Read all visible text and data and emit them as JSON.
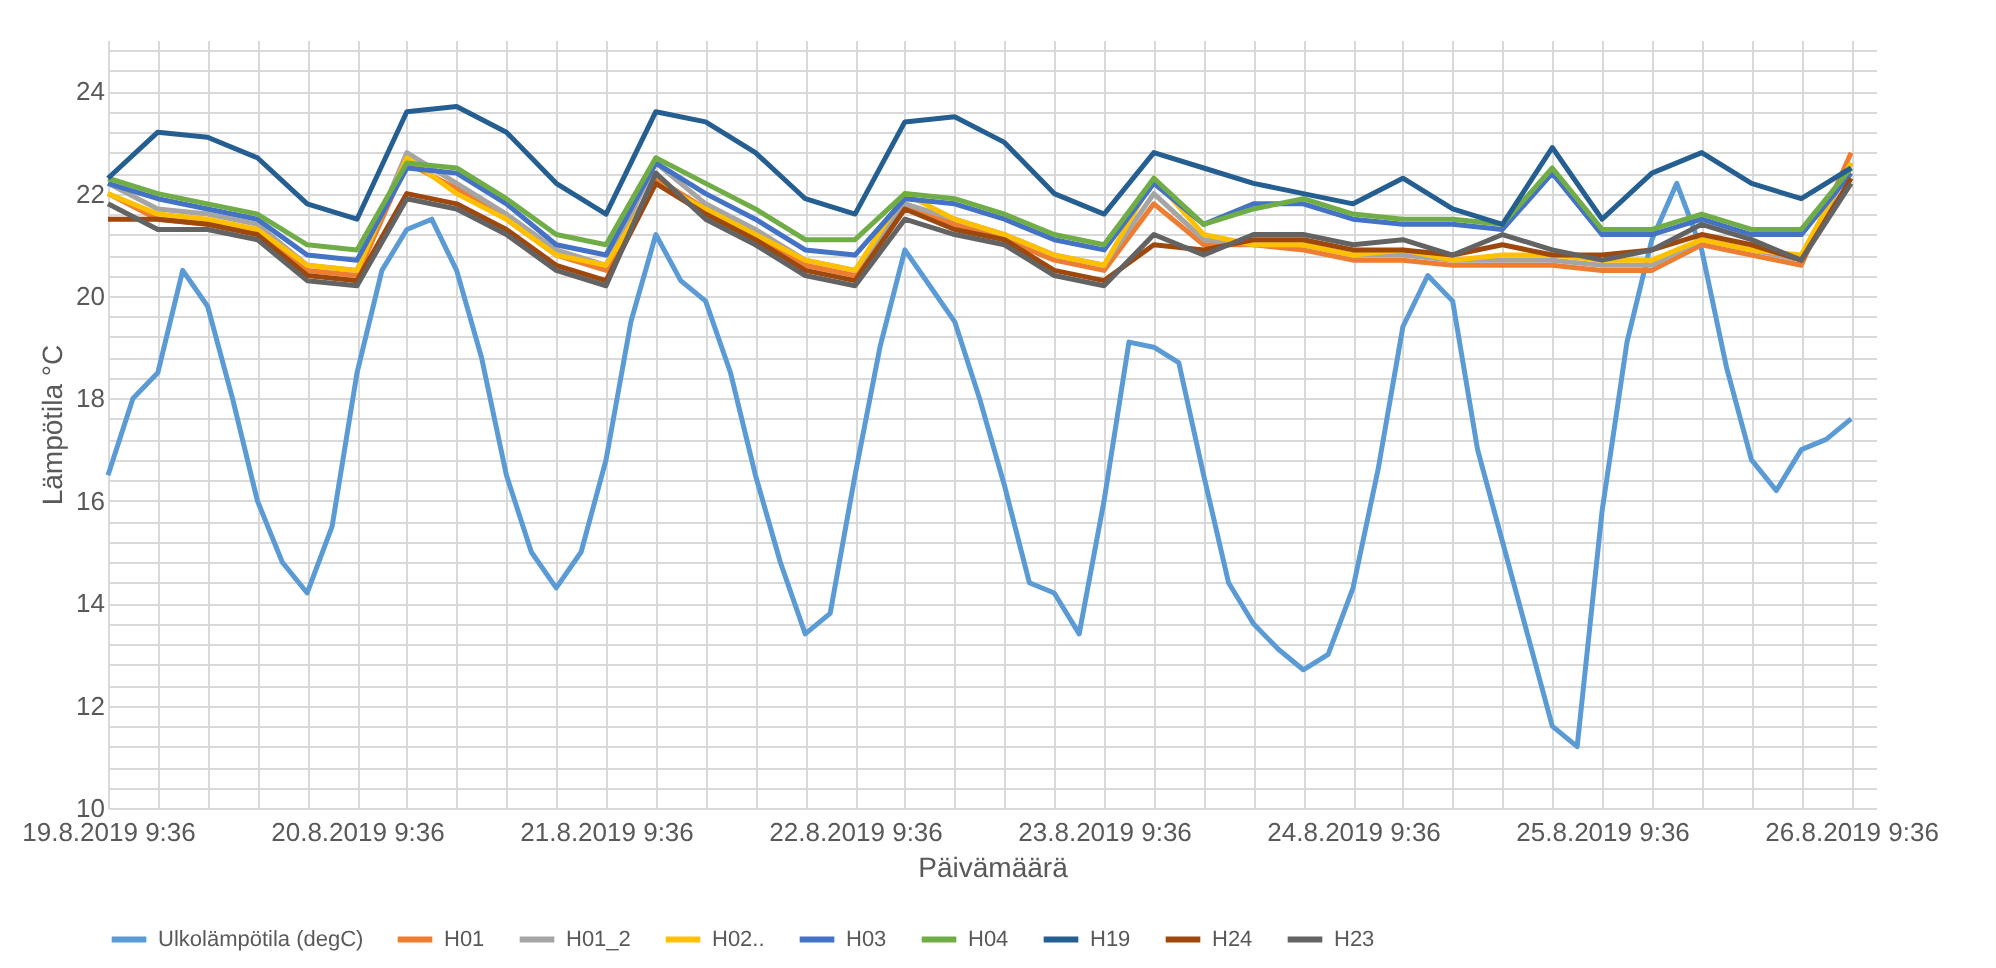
{
  "chart_data": {
    "type": "line",
    "xlabel": "Päivämäärä",
    "ylabel": "Lämpötila °C",
    "legend": "bottom",
    "grid": true,
    "line_style": "solid",
    "xlim": [
      "2019-08-19T09:36",
      "2019-08-26T12:00"
    ],
    "xticks": [
      {
        "value": "2019-08-19T09:36",
        "label": "19.8.2019 9:36"
      },
      {
        "value": "2019-08-19T14:24",
        "label": null
      },
      {
        "value": "2019-08-19T19:12",
        "label": null
      },
      {
        "value": "2019-08-20T00:00",
        "label": null
      },
      {
        "value": "2019-08-20T04:48",
        "label": null
      },
      {
        "value": "2019-08-20T09:36",
        "label": "20.8.2019 9:36"
      },
      {
        "value": "2019-08-20T14:24",
        "label": null
      },
      {
        "value": "2019-08-20T19:12",
        "label": null
      },
      {
        "value": "2019-08-21T00:00",
        "label": null
      },
      {
        "value": "2019-08-21T04:48",
        "label": null
      },
      {
        "value": "2019-08-21T09:36",
        "label": "21.8.2019 9:36"
      },
      {
        "value": "2019-08-21T14:24",
        "label": null
      },
      {
        "value": "2019-08-21T19:12",
        "label": null
      },
      {
        "value": "2019-08-22T00:00",
        "label": null
      },
      {
        "value": "2019-08-22T04:48",
        "label": null
      },
      {
        "value": "2019-08-22T09:36",
        "label": "22.8.2019 9:36"
      },
      {
        "value": "2019-08-22T14:24",
        "label": null
      },
      {
        "value": "2019-08-22T19:12",
        "label": null
      },
      {
        "value": "2019-08-23T00:00",
        "label": null
      },
      {
        "value": "2019-08-23T04:48",
        "label": null
      },
      {
        "value": "2019-08-23T09:36",
        "label": "23.8.2019 9:36"
      },
      {
        "value": "2019-08-23T14:24",
        "label": null
      },
      {
        "value": "2019-08-23T19:12",
        "label": null
      },
      {
        "value": "2019-08-24T00:00",
        "label": null
      },
      {
        "value": "2019-08-24T04:48",
        "label": null
      },
      {
        "value": "2019-08-24T09:36",
        "label": "24.8.2019 9:36"
      },
      {
        "value": "2019-08-24T14:24",
        "label": null
      },
      {
        "value": "2019-08-24T19:12",
        "label": null
      },
      {
        "value": "2019-08-25T00:00",
        "label": null
      },
      {
        "value": "2019-08-25T04:48",
        "label": null
      },
      {
        "value": "2019-08-25T09:36",
        "label": "25.8.2019 9:36"
      },
      {
        "value": "2019-08-25T14:24",
        "label": null
      },
      {
        "value": "2019-08-25T19:12",
        "label": null
      },
      {
        "value": "2019-08-26T00:00",
        "label": null
      },
      {
        "value": "2019-08-26T04:48",
        "label": null
      },
      {
        "value": "2019-08-26T09:36",
        "label": "26.8.2019 9:36"
      }
    ],
    "ylim": [
      10,
      25
    ],
    "yticks": [
      10,
      {
        "value": 10.4,
        "label": null
      },
      {
        "value": 10.8,
        "label": null
      },
      {
        "value": 11.2,
        "label": null
      },
      {
        "value": 11.6,
        "label": null
      },
      12,
      {
        "value": 12.4,
        "label": null
      },
      {
        "value": 12.8,
        "label": null
      },
      {
        "value": 13.2,
        "label": null
      },
      {
        "value": 13.6,
        "label": null
      },
      14,
      {
        "value": 14.4,
        "label": null
      },
      {
        "value": 14.8,
        "label": null
      },
      {
        "value": 15.2,
        "label": null
      },
      {
        "value": 15.6,
        "label": null
      },
      16,
      {
        "value": 16.4,
        "label": null
      },
      {
        "value": 16.8,
        "label": null
      },
      {
        "value": 17.2,
        "label": null
      },
      {
        "value": 17.6,
        "label": null
      },
      18,
      {
        "value": 18.4,
        "label": null
      },
      {
        "value": 18.8,
        "label": null
      },
      {
        "value": 19.2,
        "label": null
      },
      {
        "value": 19.6,
        "label": null
      },
      20,
      {
        "value": 20.4,
        "label": null
      },
      {
        "value": 20.8,
        "label": null
      },
      {
        "value": 21.2,
        "label": null
      },
      {
        "value": 21.6,
        "label": null
      },
      22,
      {
        "value": 22.4,
        "label": null
      },
      {
        "value": 22.8,
        "label": null
      },
      {
        "value": 23.2,
        "label": null
      },
      {
        "value": 23.6,
        "label": null
      },
      24,
      {
        "value": 24.4,
        "label": null
      },
      {
        "value": 24.8,
        "label": null
      }
    ],
    "x": [
      "2019-08-19T09:36",
      "2019-08-19T12:00",
      "2019-08-19T14:24",
      "2019-08-19T16:48",
      "2019-08-19T19:12",
      "2019-08-19T21:36",
      "2019-08-20T00:00",
      "2019-08-20T02:24",
      "2019-08-20T04:48",
      "2019-08-20T07:12",
      "2019-08-20T09:36",
      "2019-08-20T12:00",
      "2019-08-20T14:24",
      "2019-08-20T16:48",
      "2019-08-20T19:12",
      "2019-08-20T21:36",
      "2019-08-21T00:00",
      "2019-08-21T02:24",
      "2019-08-21T04:48",
      "2019-08-21T07:12",
      "2019-08-21T09:36",
      "2019-08-21T12:00",
      "2019-08-21T14:24",
      "2019-08-21T16:48",
      "2019-08-21T19:12",
      "2019-08-21T21:36",
      "2019-08-22T00:00",
      "2019-08-22T02:24",
      "2019-08-22T04:48",
      "2019-08-22T07:12",
      "2019-08-22T09:36",
      "2019-08-22T12:00",
      "2019-08-22T14:24",
      "2019-08-22T16:48",
      "2019-08-22T19:12",
      "2019-08-22T21:36",
      "2019-08-23T00:00",
      "2019-08-23T02:24",
      "2019-08-23T04:48",
      "2019-08-23T07:12",
      "2019-08-23T09:36",
      "2019-08-23T12:00",
      "2019-08-23T14:24",
      "2019-08-23T16:48",
      "2019-08-23T19:12",
      "2019-08-23T21:36",
      "2019-08-24T00:00",
      "2019-08-24T02:24",
      "2019-08-24T04:48",
      "2019-08-24T07:12",
      "2019-08-24T09:36",
      "2019-08-24T12:00",
      "2019-08-24T14:24",
      "2019-08-24T16:48",
      "2019-08-24T19:12",
      "2019-08-24T21:36",
      "2019-08-25T00:00",
      "2019-08-25T02:24",
      "2019-08-25T04:48",
      "2019-08-25T07:12",
      "2019-08-25T09:36",
      "2019-08-25T12:00",
      "2019-08-25T14:24",
      "2019-08-25T16:48",
      "2019-08-25T19:12",
      "2019-08-25T21:36",
      "2019-08-26T00:00",
      "2019-08-26T02:24",
      "2019-08-26T04:48",
      "2019-08-26T07:12",
      "2019-08-26T09:36"
    ],
    "series": [
      {
        "name": "Ulkolämpötila (degC)",
        "color": "#5b9bd5",
        "values": [
          16.5,
          18.0,
          18.5,
          20.5,
          19.8,
          18.0,
          16.0,
          14.8,
          14.2,
          15.5,
          18.5,
          20.5,
          21.3,
          21.5,
          20.5,
          18.8,
          16.5,
          15.0,
          14.3,
          15.0,
          16.8,
          19.5,
          21.2,
          20.3,
          19.9,
          18.5,
          16.5,
          14.8,
          13.4,
          13.8,
          16.5,
          19.0,
          20.9,
          20.2,
          19.5,
          18.0,
          16.3,
          14.4,
          14.2,
          13.4,
          16.0,
          19.1,
          19.0,
          18.7,
          16.5,
          14.4,
          13.6,
          13.1,
          12.7,
          13.0,
          14.3,
          16.6,
          19.4,
          20.4,
          19.9,
          17.0,
          15.2,
          13.4,
          11.6,
          11.2,
          15.8,
          19.1,
          21.1,
          22.2,
          20.9,
          18.6,
          16.8,
          16.2,
          17.0,
          17.2,
          17.6
        ]
      },
      {
        "name": "H01",
        "color": "#ed7d31",
        "x": [
          "2019-08-19T09:36",
          "2019-08-19T14:24",
          "2019-08-19T19:12",
          "2019-08-20T00:00",
          "2019-08-20T04:48",
          "2019-08-20T09:36",
          "2019-08-20T14:24",
          "2019-08-20T19:12",
          "2019-08-21T00:00",
          "2019-08-21T04:48",
          "2019-08-21T09:36",
          "2019-08-21T14:24",
          "2019-08-21T19:12",
          "2019-08-22T00:00",
          "2019-08-22T04:48",
          "2019-08-22T09:36",
          "2019-08-22T14:24",
          "2019-08-22T19:12",
          "2019-08-23T00:00",
          "2019-08-23T04:48",
          "2019-08-23T09:36",
          "2019-08-23T14:24",
          "2019-08-23T19:12",
          "2019-08-24T00:00",
          "2019-08-24T04:48",
          "2019-08-24T09:36",
          "2019-08-24T14:24",
          "2019-08-24T19:12",
          "2019-08-25T00:00",
          "2019-08-25T04:48",
          "2019-08-25T09:36",
          "2019-08-25T14:24",
          "2019-08-25T19:12",
          "2019-08-26T00:00",
          "2019-08-26T04:48",
          "2019-08-26T09:36"
        ],
        "values": [
          22.0,
          21.5,
          21.4,
          21.2,
          20.5,
          20.4,
          22.6,
          22.1,
          21.5,
          20.8,
          20.5,
          22.3,
          21.7,
          21.2,
          20.6,
          20.4,
          21.8,
          21.4,
          21.1,
          20.7,
          20.5,
          21.8,
          21.0,
          21.0,
          20.9,
          20.7,
          20.7,
          20.6,
          20.6,
          20.6,
          20.5,
          20.5,
          21.0,
          20.8,
          20.6,
          22.8
        ]
      },
      {
        "name": "H01_2",
        "color": "#a5a5a5",
        "x": [
          "2019-08-19T09:36",
          "2019-08-19T14:24",
          "2019-08-19T19:12",
          "2019-08-20T00:00",
          "2019-08-20T04:48",
          "2019-08-20T09:36",
          "2019-08-20T14:24",
          "2019-08-20T19:12",
          "2019-08-21T00:00",
          "2019-08-21T04:48",
          "2019-08-21T09:36",
          "2019-08-21T14:24",
          "2019-08-21T19:12",
          "2019-08-22T00:00",
          "2019-08-22T04:48",
          "2019-08-22T09:36",
          "2019-08-22T14:24",
          "2019-08-22T19:12",
          "2019-08-23T00:00",
          "2019-08-23T04:48",
          "2019-08-23T09:36",
          "2019-08-23T14:24",
          "2019-08-23T19:12",
          "2019-08-24T00:00",
          "2019-08-24T04:48",
          "2019-08-24T09:36",
          "2019-08-24T14:24",
          "2019-08-24T19:12",
          "2019-08-25T00:00",
          "2019-08-25T04:48",
          "2019-08-25T09:36",
          "2019-08-25T14:24",
          "2019-08-25T19:12",
          "2019-08-26T00:00",
          "2019-08-26T04:48",
          "2019-08-26T09:36"
        ],
        "values": [
          22.2,
          21.7,
          21.6,
          21.4,
          20.6,
          20.5,
          22.8,
          22.2,
          21.6,
          20.9,
          20.6,
          22.6,
          21.8,
          21.3,
          20.7,
          20.5,
          21.8,
          21.5,
          21.2,
          20.8,
          20.6,
          22.0,
          21.1,
          21.0,
          21.0,
          20.8,
          20.8,
          20.7,
          20.7,
          20.7,
          20.6,
          20.6,
          21.1,
          20.9,
          20.7,
          22.6
        ]
      },
      {
        "name": "H02..",
        "color": "#ffc000",
        "x": [
          "2019-08-19T09:36",
          "2019-08-19T14:24",
          "2019-08-19T19:12",
          "2019-08-20T00:00",
          "2019-08-20T04:48",
          "2019-08-20T09:36",
          "2019-08-20T14:24",
          "2019-08-20T19:12",
          "2019-08-21T00:00",
          "2019-08-21T04:48",
          "2019-08-21T09:36",
          "2019-08-21T14:24",
          "2019-08-21T19:12",
          "2019-08-22T00:00",
          "2019-08-22T04:48",
          "2019-08-22T09:36",
          "2019-08-22T14:24",
          "2019-08-22T19:12",
          "2019-08-23T00:00",
          "2019-08-23T04:48",
          "2019-08-23T09:36",
          "2019-08-23T14:24",
          "2019-08-23T19:12",
          "2019-08-24T00:00",
          "2019-08-24T04:48",
          "2019-08-24T09:36",
          "2019-08-24T14:24",
          "2019-08-24T19:12",
          "2019-08-25T00:00",
          "2019-08-25T04:48",
          "2019-08-25T09:36",
          "2019-08-25T14:24",
          "2019-08-25T19:12",
          "2019-08-26T00:00",
          "2019-08-26T04:48",
          "2019-08-26T09:36"
        ],
        "values": [
          22.0,
          21.6,
          21.5,
          21.3,
          20.6,
          20.5,
          22.7,
          22.0,
          21.5,
          20.8,
          20.6,
          22.2,
          21.7,
          21.2,
          20.7,
          20.5,
          22.0,
          21.5,
          21.2,
          20.8,
          20.6,
          22.3,
          21.2,
          21.0,
          21.0,
          20.8,
          20.9,
          20.7,
          20.8,
          20.8,
          20.7,
          20.7,
          21.1,
          20.9,
          20.8,
          22.6
        ]
      },
      {
        "name": "H03",
        "color": "#4472c4",
        "x": [
          "2019-08-19T09:36",
          "2019-08-19T14:24",
          "2019-08-19T19:12",
          "2019-08-20T00:00",
          "2019-08-20T04:48",
          "2019-08-20T09:36",
          "2019-08-20T14:24",
          "2019-08-20T19:12",
          "2019-08-21T00:00",
          "2019-08-21T04:48",
          "2019-08-21T09:36",
          "2019-08-21T14:24",
          "2019-08-21T19:12",
          "2019-08-22T00:00",
          "2019-08-22T04:48",
          "2019-08-22T09:36",
          "2019-08-22T14:24",
          "2019-08-22T19:12",
          "2019-08-23T00:00",
          "2019-08-23T04:48",
          "2019-08-23T09:36",
          "2019-08-23T14:24",
          "2019-08-23T19:12",
          "2019-08-24T00:00",
          "2019-08-24T04:48",
          "2019-08-24T09:36",
          "2019-08-24T14:24",
          "2019-08-24T19:12",
          "2019-08-25T00:00",
          "2019-08-25T04:48",
          "2019-08-25T09:36",
          "2019-08-25T14:24",
          "2019-08-25T19:12",
          "2019-08-26T00:00",
          "2019-08-26T04:48",
          "2019-08-26T09:36"
        ],
        "values": [
          22.2,
          21.9,
          21.7,
          21.5,
          20.8,
          20.7,
          22.5,
          22.4,
          21.8,
          21.0,
          20.8,
          22.6,
          22.0,
          21.5,
          20.9,
          20.8,
          21.9,
          21.8,
          21.5,
          21.1,
          20.9,
          22.2,
          21.4,
          21.8,
          21.8,
          21.5,
          21.4,
          21.4,
          21.3,
          22.4,
          21.2,
          21.2,
          21.5,
          21.2,
          21.2,
          22.4
        ]
      },
      {
        "name": "H04",
        "color": "#70ad47",
        "x": [
          "2019-08-19T09:36",
          "2019-08-19T14:24",
          "2019-08-19T19:12",
          "2019-08-20T00:00",
          "2019-08-20T04:48",
          "2019-08-20T09:36",
          "2019-08-20T14:24",
          "2019-08-20T19:12",
          "2019-08-21T00:00",
          "2019-08-21T04:48",
          "2019-08-21T09:36",
          "2019-08-21T14:24",
          "2019-08-21T19:12",
          "2019-08-22T00:00",
          "2019-08-22T04:48",
          "2019-08-22T09:36",
          "2019-08-22T14:24",
          "2019-08-22T19:12",
          "2019-08-23T00:00",
          "2019-08-23T04:48",
          "2019-08-23T09:36",
          "2019-08-23T14:24",
          "2019-08-23T19:12",
          "2019-08-24T00:00",
          "2019-08-24T04:48",
          "2019-08-24T09:36",
          "2019-08-24T14:24",
          "2019-08-24T19:12",
          "2019-08-25T00:00",
          "2019-08-25T04:48",
          "2019-08-25T09:36",
          "2019-08-25T14:24",
          "2019-08-25T19:12",
          "2019-08-26T00:00",
          "2019-08-26T04:48",
          "2019-08-26T09:36"
        ],
        "values": [
          22.3,
          22.0,
          21.8,
          21.6,
          21.0,
          20.9,
          22.6,
          22.5,
          21.9,
          21.2,
          21.0,
          22.7,
          22.2,
          21.7,
          21.1,
          21.1,
          22.0,
          21.9,
          21.6,
          21.2,
          21.0,
          22.3,
          21.4,
          21.7,
          21.9,
          21.6,
          21.5,
          21.5,
          21.4,
          22.5,
          21.3,
          21.3,
          21.6,
          21.3,
          21.3,
          22.5
        ]
      },
      {
        "name": "H19",
        "color": "#255e91",
        "x": [
          "2019-08-19T09:36",
          "2019-08-19T14:24",
          "2019-08-19T19:12",
          "2019-08-20T00:00",
          "2019-08-20T04:48",
          "2019-08-20T09:36",
          "2019-08-20T14:24",
          "2019-08-20T19:12",
          "2019-08-21T00:00",
          "2019-08-21T04:48",
          "2019-08-21T09:36",
          "2019-08-21T14:24",
          "2019-08-21T19:12",
          "2019-08-22T00:00",
          "2019-08-22T04:48",
          "2019-08-22T09:36",
          "2019-08-22T14:24",
          "2019-08-22T19:12",
          "2019-08-23T00:00",
          "2019-08-23T04:48",
          "2019-08-23T09:36",
          "2019-08-23T14:24",
          "2019-08-23T19:12",
          "2019-08-24T00:00",
          "2019-08-24T04:48",
          "2019-08-24T09:36",
          "2019-08-24T14:24",
          "2019-08-24T19:12",
          "2019-08-25T00:00",
          "2019-08-25T04:48",
          "2019-08-25T09:36",
          "2019-08-25T14:24",
          "2019-08-25T19:12",
          "2019-08-26T00:00",
          "2019-08-26T04:48",
          "2019-08-26T09:36"
        ],
        "values": [
          22.3,
          23.2,
          23.1,
          22.7,
          21.8,
          21.5,
          23.6,
          23.7,
          23.2,
          22.2,
          21.6,
          23.6,
          23.4,
          22.8,
          21.9,
          21.6,
          23.4,
          23.5,
          23.0,
          22.0,
          21.6,
          22.8,
          22.5,
          22.2,
          22.0,
          21.8,
          22.3,
          21.7,
          21.4,
          22.9,
          21.5,
          22.4,
          22.8,
          22.2,
          21.9,
          22.5
        ]
      },
      {
        "name": "H24",
        "color": "#9e480e",
        "x": [
          "2019-08-19T09:36",
          "2019-08-19T14:24",
          "2019-08-19T19:12",
          "2019-08-20T00:00",
          "2019-08-20T04:48",
          "2019-08-20T09:36",
          "2019-08-20T14:24",
          "2019-08-20T19:12",
          "2019-08-21T00:00",
          "2019-08-21T04:48",
          "2019-08-21T09:36",
          "2019-08-21T14:24",
          "2019-08-21T19:12",
          "2019-08-22T00:00",
          "2019-08-22T04:48",
          "2019-08-22T09:36",
          "2019-08-22T14:24",
          "2019-08-22T19:12",
          "2019-08-23T00:00",
          "2019-08-23T04:48",
          "2019-08-23T09:36",
          "2019-08-23T14:24",
          "2019-08-23T19:12",
          "2019-08-24T00:00",
          "2019-08-24T04:48",
          "2019-08-24T09:36",
          "2019-08-24T14:24",
          "2019-08-24T19:12",
          "2019-08-25T00:00",
          "2019-08-25T04:48",
          "2019-08-25T09:36",
          "2019-08-25T14:24",
          "2019-08-25T19:12",
          "2019-08-26T00:00",
          "2019-08-26T04:48",
          "2019-08-26T09:36"
        ],
        "values": [
          21.5,
          21.5,
          21.4,
          21.2,
          20.4,
          20.3,
          22.0,
          21.8,
          21.3,
          20.6,
          20.3,
          22.2,
          21.6,
          21.1,
          20.5,
          20.3,
          21.7,
          21.3,
          21.1,
          20.5,
          20.3,
          21.0,
          20.9,
          21.1,
          21.1,
          20.9,
          20.9,
          20.8,
          21.0,
          20.8,
          20.8,
          20.9,
          21.2,
          21.0,
          20.7,
          22.3
        ]
      },
      {
        "name": "H23",
        "color": "#636363",
        "x": [
          "2019-08-19T09:36",
          "2019-08-19T14:24",
          "2019-08-19T19:12",
          "2019-08-20T00:00",
          "2019-08-20T04:48",
          "2019-08-20T09:36",
          "2019-08-20T14:24",
          "2019-08-20T19:12",
          "2019-08-21T00:00",
          "2019-08-21T04:48",
          "2019-08-21T09:36",
          "2019-08-21T14:24",
          "2019-08-21T19:12",
          "2019-08-22T00:00",
          "2019-08-22T04:48",
          "2019-08-22T09:36",
          "2019-08-22T14:24",
          "2019-08-22T19:12",
          "2019-08-23T00:00",
          "2019-08-23T04:48",
          "2019-08-23T09:36",
          "2019-08-23T14:24",
          "2019-08-23T19:12",
          "2019-08-24T00:00",
          "2019-08-24T04:48",
          "2019-08-24T09:36",
          "2019-08-24T14:24",
          "2019-08-24T19:12",
          "2019-08-25T00:00",
          "2019-08-25T04:48",
          "2019-08-25T09:36",
          "2019-08-25T14:24",
          "2019-08-25T19:12",
          "2019-08-26T00:00",
          "2019-08-26T04:48",
          "2019-08-26T09:36"
        ],
        "values": [
          21.8,
          21.3,
          21.3,
          21.1,
          20.3,
          20.2,
          21.9,
          21.7,
          21.2,
          20.5,
          20.2,
          22.4,
          21.5,
          21.0,
          20.4,
          20.2,
          21.5,
          21.2,
          21.0,
          20.4,
          20.2,
          21.2,
          20.8,
          21.2,
          21.2,
          21.0,
          21.1,
          20.8,
          21.2,
          20.9,
          20.7,
          20.9,
          21.4,
          21.1,
          20.7,
          22.2
        ]
      }
    ]
  }
}
